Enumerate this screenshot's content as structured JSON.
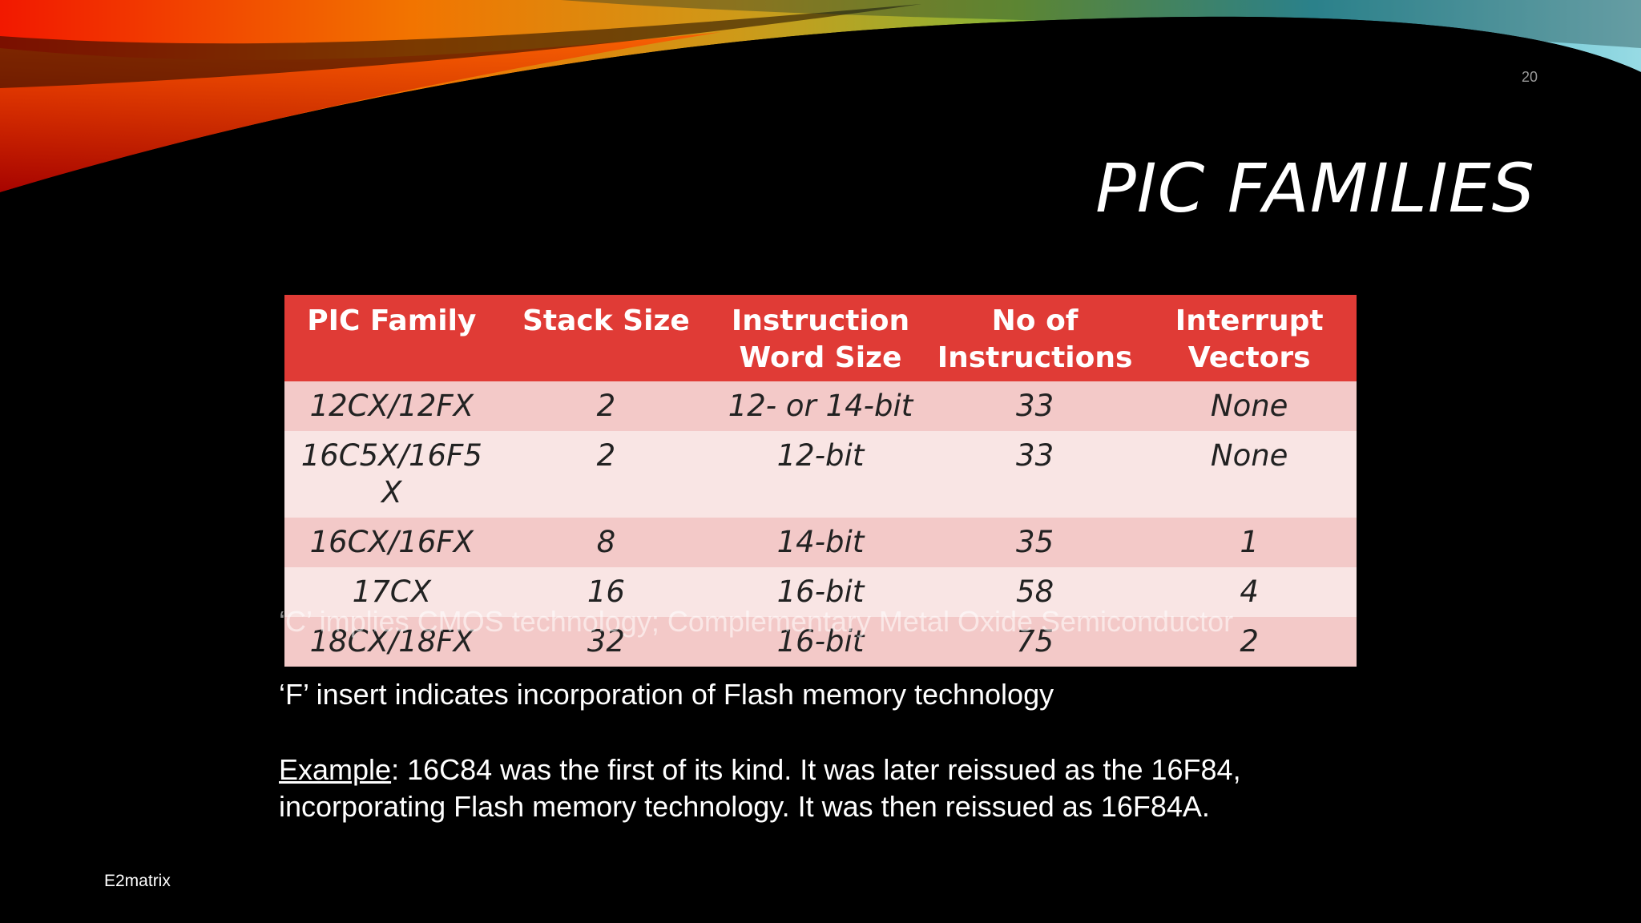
{
  "slide": {
    "number": "20",
    "title": "PIC FAMILIES",
    "footer": "E2matrix"
  },
  "table": {
    "headers": [
      "PIC Family",
      "Stack Size",
      "Instruction Word Size",
      "No of Instructions",
      "Interrupt Vectors"
    ],
    "rows": [
      [
        "12CX/12FX",
        "2",
        "12- or 14-bit",
        "33",
        "None"
      ],
      [
        "16C5X/16F5X",
        "2",
        "12-bit",
        "33",
        "None"
      ],
      [
        "16CX/16FX",
        "8",
        "14-bit",
        "35",
        "1"
      ],
      [
        "17CX",
        "16",
        "16-bit",
        "58",
        "4"
      ],
      [
        "18CX/18FX",
        "32",
        "16-bit",
        "75",
        "2"
      ]
    ]
  },
  "notes": {
    "c_note": "‘C’ implies CMOS technology; Complementary Metal Oxide Semiconductor",
    "f_note": "‘F’ insert indicates incorporation of Flash memory technology",
    "example_label": "Example",
    "example_line1": ": 16C84 was the first of its kind. It was later reissued as the 16F84,",
    "example_line2": "incorporating Flash memory technology. It was then reissued as 16F84A."
  },
  "colors": {
    "header_red": "#e03b36",
    "row_dark": "#f3c9c8",
    "row_light": "#f9e5e4",
    "background": "#000000"
  }
}
